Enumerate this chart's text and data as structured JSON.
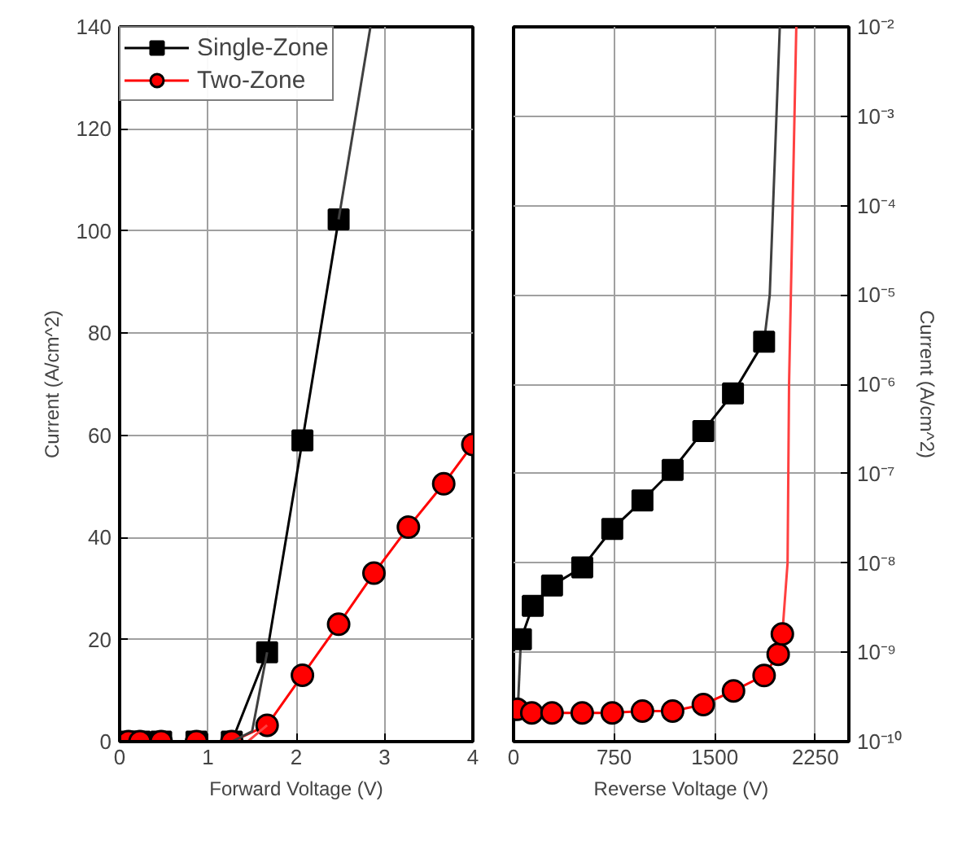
{
  "chart_data": [
    {
      "type": "line",
      "xlabel": "Forward Voltage (V)",
      "ylabel": "Current (A/cm^2)",
      "xlim": [
        0,
        4
      ],
      "ylim": [
        0,
        140
      ],
      "xticks": [
        0,
        1,
        2,
        3,
        4
      ],
      "yticks": [
        0,
        20,
        40,
        60,
        80,
        100,
        120,
        140
      ],
      "grid": true,
      "legend": "top left",
      "series": [
        {
          "name": "Single-Zone",
          "color": "#000000",
          "marker": "square",
          "x": [
            0.1,
            0.23,
            0.47,
            0.87,
            1.27,
            1.67,
            2.07,
            2.48
          ],
          "values": [
            0,
            0,
            0,
            0,
            0,
            17.5,
            59,
            102.3
          ]
        },
        {
          "name": "Two-Zone",
          "color": "#ff0000",
          "marker": "circle",
          "x": [
            0.1,
            0.23,
            0.47,
            0.87,
            1.27,
            1.67,
            2.07,
            2.48,
            2.88,
            3.27,
            3.67,
            4.0
          ],
          "values": [
            0,
            0,
            0,
            0,
            0,
            3.2,
            13,
            23,
            33,
            42,
            50.5,
            58.2
          ]
        },
        {
          "color": "#404040",
          "marker": "none",
          "x": [
            1.27,
            1.5,
            1.67
          ],
          "values": [
            0,
            2,
            17.5
          ]
        },
        {
          "color": "#404040",
          "marker": "none",
          "x": [
            2.48,
            2.84
          ],
          "values": [
            102.3,
            140
          ]
        },
        {
          "color": "#ff4040",
          "marker": "none",
          "x": [
            1.27,
            1.45,
            1.67
          ],
          "values": [
            0,
            0,
            3.2
          ]
        }
      ]
    },
    {
      "type": "line",
      "xlabel": "Reverse Voltage (V)",
      "ylabel": "Current (A/cm^2)",
      "xlim": [
        0,
        2500
      ],
      "ylim": [
        1e-10,
        0.01
      ],
      "log": true,
      "xticks": [
        0,
        750,
        1500,
        2250
      ],
      "yticks": [
        {
          "value": 1e-10,
          "label": "10⁻¹⁰"
        },
        {
          "value": 1e-09,
          "label": "10⁻⁹"
        },
        {
          "value": 1e-08,
          "label": "10⁻⁸"
        },
        {
          "value": 1e-07,
          "label": "10⁻⁷"
        },
        {
          "value": 1e-06,
          "label": "10⁻⁶"
        },
        {
          "value": 1e-05,
          "label": "10⁻⁵"
        },
        {
          "value": 0.0001,
          "label": "10⁻⁴"
        },
        {
          "value": 0.001,
          "label": "10⁻³"
        },
        {
          "value": 0.01,
          "label": "10⁻²"
        }
      ],
      "grid": true,
      "series": [
        {
          "color": "#404040",
          "marker": "none",
          "x": [
            30,
            55
          ],
          "values": [
            2e-10,
            1.4e-09
          ]
        },
        {
          "color": "#404040",
          "marker": "none",
          "x": [
            1868,
            1910,
            1935,
            1960,
            1985
          ],
          "values": [
            3e-06,
            1e-05,
            0.0001,
            0.001,
            0.01
          ]
        },
        {
          "color": "#ff4040",
          "marker": "none",
          "x": [
            2004,
            2043,
            2054,
            2108
          ],
          "values": [
            1.6e-09,
            1e-08,
            1e-06,
            0.01
          ]
        },
        {
          "color": "#000000",
          "marker": "square",
          "x": [
            55,
            143,
            287,
            512,
            736,
            961,
            1186,
            1415,
            1636,
            1868
          ],
          "values": [
            1.4e-09,
            3.3e-09,
            5.6e-09,
            8.9e-09,
            2.4e-08,
            5e-08,
            1.1e-07,
            3e-07,
            7.9e-07,
            3e-06
          ]
        },
        {
          "color": "#ff0000",
          "marker": "circle",
          "x": [
            27,
            136,
            287,
            512,
            736,
            961,
            1186,
            1415,
            1640,
            1868,
            1973,
            2004
          ],
          "values": [
            2.3e-10,
            2.1e-10,
            2.1e-10,
            2.1e-10,
            2.1e-10,
            2.2e-10,
            2.2e-10,
            2.6e-10,
            3.7e-10,
            5.5e-10,
            9.5e-10,
            1.6e-09
          ]
        }
      ]
    }
  ]
}
